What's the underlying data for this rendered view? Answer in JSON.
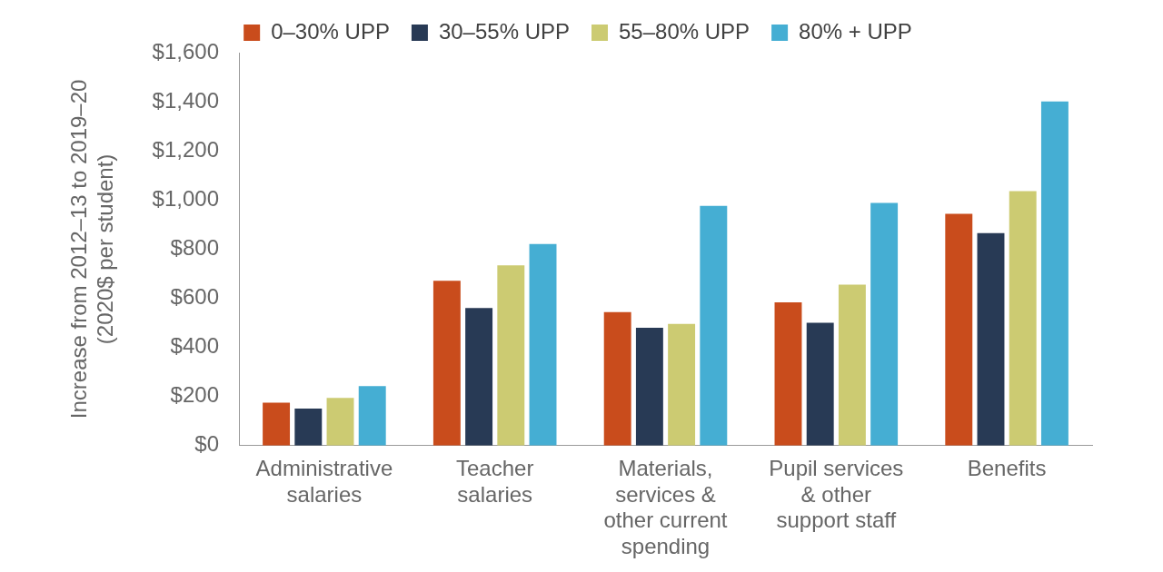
{
  "chart_data": {
    "type": "bar",
    "ylabel": "Increase from 2012–13 to 2019–20 (2020$ per student)",
    "categories": [
      "Administrative salaries",
      "Teacher salaries",
      "Materials, services & other current spending",
      "Pupil services & other support staff",
      "Benefits"
    ],
    "series": [
      {
        "name": "0–30% UPP",
        "color": "#c94c1c",
        "values": [
          175,
          671,
          544,
          583,
          944
        ]
      },
      {
        "name": "30–55% UPP",
        "color": "#283a55",
        "values": [
          151,
          560,
          480,
          500,
          865
        ]
      },
      {
        "name": "55–80% UPP",
        "color": "#cccb72",
        "values": [
          194,
          734,
          496,
          655,
          1036
        ]
      },
      {
        "name": "80% + UPP",
        "color": "#45aed3",
        "values": [
          242,
          821,
          976,
          988,
          1401
        ]
      }
    ],
    "ylim": [
      0,
      1600
    ],
    "yticks": [
      {
        "value": 0,
        "label": "$0"
      },
      {
        "value": 200,
        "label": "$200"
      },
      {
        "value": 400,
        "label": "$400"
      },
      {
        "value": 600,
        "label": "$600"
      },
      {
        "value": 800,
        "label": "$800"
      },
      {
        "value": 1000,
        "label": "$1,000"
      },
      {
        "value": 1200,
        "label": "$1,200"
      },
      {
        "value": 1400,
        "label": "$1,400"
      },
      {
        "value": 1600,
        "label": "$1,600"
      }
    ],
    "grid": false,
    "legend": "top"
  }
}
